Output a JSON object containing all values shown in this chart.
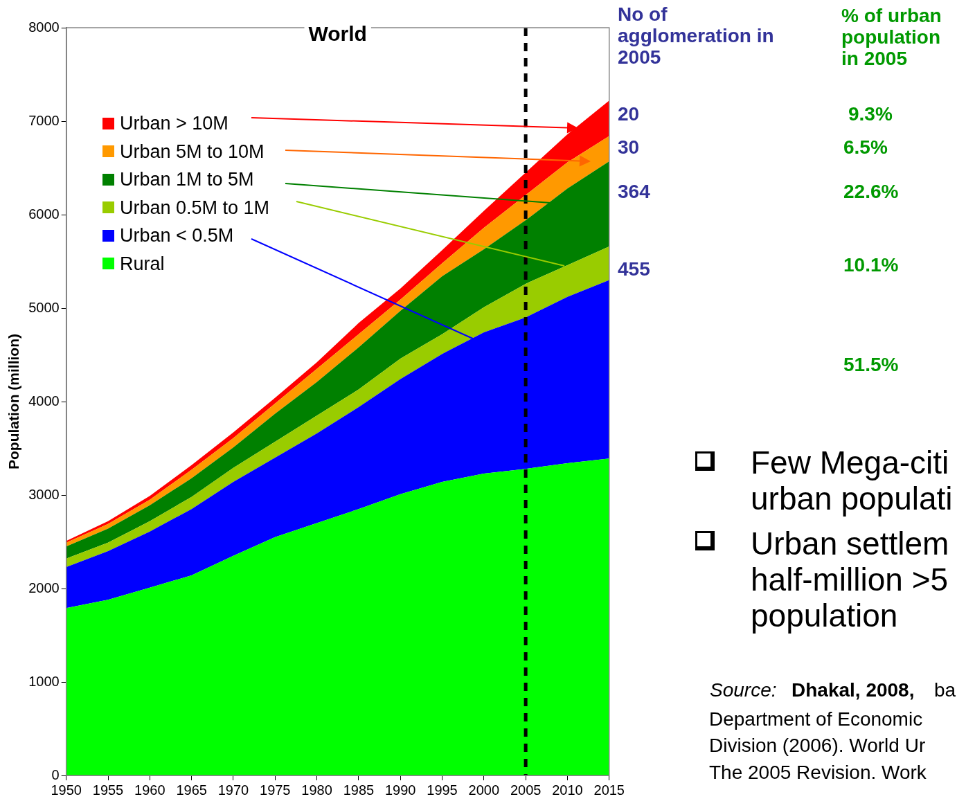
{
  "chart_data": {
    "type": "area",
    "stacked": true,
    "title": "World",
    "ylabel": "Population (million)",
    "x": [
      1950,
      1955,
      1960,
      1965,
      1970,
      1975,
      1980,
      1985,
      1990,
      1995,
      2000,
      2005,
      2010,
      2015
    ],
    "xlim": [
      1950,
      2015
    ],
    "xticks": [
      1950,
      1955,
      1960,
      1965,
      1970,
      1975,
      1980,
      1985,
      1990,
      1995,
      2000,
      2005,
      2010,
      2015
    ],
    "ylim": [
      0,
      8000
    ],
    "yticks": [
      0,
      1000,
      2000,
      3000,
      4000,
      5000,
      6000,
      7000,
      8000
    ],
    "grid": false,
    "legend": "top left",
    "series": [
      {
        "name": "Rural",
        "color": "#00ff00",
        "values": [
          1790,
          1880,
          2010,
          2140,
          2350,
          2550,
          2700,
          2850,
          3010,
          3140,
          3230,
          3280,
          3340,
          3390
        ]
      },
      {
        "name": "Urban < 0.5M",
        "color": "#0000ff",
        "values": [
          440,
          520,
          600,
          710,
          790,
          850,
          960,
          1090,
          1230,
          1370,
          1510,
          1620,
          1780,
          1910
        ]
      },
      {
        "name": "Urban 0.5M to 1M",
        "color": "#99cc00",
        "values": [
          90,
          90,
          110,
          130,
          150,
          170,
          190,
          190,
          220,
          210,
          270,
          360,
          340,
          360
        ]
      },
      {
        "name": "Urban 1M to 5M",
        "color": "#008000",
        "values": [
          130,
          150,
          170,
          200,
          220,
          300,
          360,
          450,
          510,
          620,
          620,
          680,
          820,
          910
        ]
      },
      {
        "name": "Urban 5M to 10M",
        "color": "#ff9900",
        "values": [
          40,
          50,
          60,
          90,
          100,
          110,
          140,
          140,
          120,
          140,
          230,
          270,
          280,
          270
        ]
      },
      {
        "name": "Urban > 10M",
        "color": "#ff0000",
        "values": [
          20,
          30,
          40,
          50,
          60,
          60,
          70,
          120,
          120,
          140,
          180,
          240,
          300,
          380
        ]
      }
    ],
    "ref_lines": [
      {
        "axis": "x",
        "value": 2005,
        "color": "#000000",
        "line_style": "dashed"
      }
    ],
    "annotations": [
      "No of agglomeration in 2005",
      "% of urban population in 2005",
      "20",
      "30",
      "364",
      "455",
      "9.3%",
      "6.5%",
      "22.6%",
      "10.1%",
      "51.5%",
      "Few Mega-citi\nurban populati",
      "Urban settlem\nhalf-million >5\npopulation",
      "Source:",
      "Dhakal, 2008,",
      "ba",
      "Department of Economic\nDivision (2006). World Ur\nThe 2005 Revision. Work"
    ]
  }
}
